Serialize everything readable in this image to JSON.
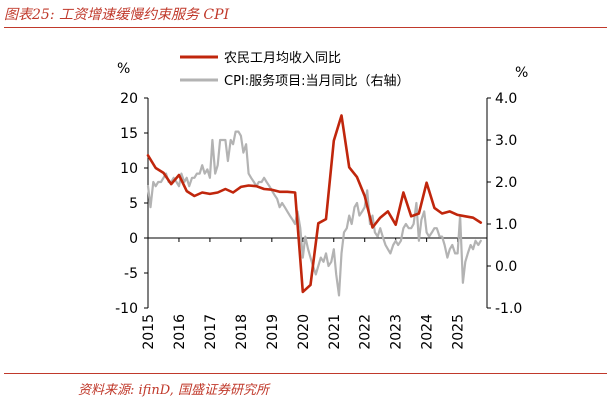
{
  "title": "图表25:  工资增速缓慢约束服务 CPI",
  "source": "资料来源:  ifinD,  国盛证券研究所",
  "colors": {
    "series_income": "#c0260c",
    "series_cpi": "#b3b3b3",
    "accent": "#c0392b"
  },
  "chart_data": {
    "type": "line",
    "title": "图表25:  工资增速缓慢约束服务 CPI",
    "y_left": {
      "unit": "%",
      "range": [
        -10,
        20
      ],
      "ticks": [
        -10,
        -5,
        0,
        5,
        10,
        15,
        20
      ]
    },
    "y_right": {
      "unit": "%",
      "range": [
        -1.0,
        4.0
      ],
      "ticks": [
        "-1.0",
        "0.0",
        "1.0",
        "2.0",
        "3.0",
        "4.0"
      ],
      "tick_values": [
        -1,
        0,
        1,
        2,
        3,
        4
      ]
    },
    "x": {
      "range": [
        2015.0,
        2025.95
      ],
      "ticks": [
        "2015",
        "2016",
        "2017",
        "2018",
        "2019",
        "2020",
        "2021",
        "2022",
        "2023",
        "2024",
        "2025"
      ],
      "tick_values": [
        2015,
        2016,
        2017,
        2018,
        2019,
        2020,
        2021,
        2022,
        2023,
        2024,
        2025
      ]
    },
    "legend": {
      "placement": "top-center"
    },
    "series": [
      {
        "name": "农民工月均收入同比",
        "axis": "left",
        "color": "#c0260c",
        "points": [
          [
            2015.0,
            11.8
          ],
          [
            2015.25,
            10.0
          ],
          [
            2015.5,
            9.3
          ],
          [
            2015.75,
            7.7
          ],
          [
            2016.0,
            9.0
          ],
          [
            2016.25,
            6.7
          ],
          [
            2016.5,
            6.0
          ],
          [
            2016.75,
            6.5
          ],
          [
            2017.0,
            6.3
          ],
          [
            2017.25,
            6.5
          ],
          [
            2017.5,
            7.0
          ],
          [
            2017.75,
            6.5
          ],
          [
            2018.0,
            7.3
          ],
          [
            2018.25,
            7.5
          ],
          [
            2018.5,
            7.4
          ],
          [
            2018.75,
            7.0
          ],
          [
            2019.0,
            6.9
          ],
          [
            2019.25,
            6.6
          ],
          [
            2019.5,
            6.6
          ],
          [
            2019.75,
            6.5
          ],
          [
            2020.0,
            -7.7
          ],
          [
            2020.25,
            -6.7
          ],
          [
            2020.5,
            2.1
          ],
          [
            2020.75,
            2.7
          ],
          [
            2021.0,
            13.9
          ],
          [
            2021.25,
            17.5
          ],
          [
            2021.5,
            10.1
          ],
          [
            2021.75,
            8.7
          ],
          [
            2022.0,
            6.0
          ],
          [
            2022.25,
            1.5
          ],
          [
            2022.5,
            2.9
          ],
          [
            2022.75,
            3.8
          ],
          [
            2023.0,
            1.9
          ],
          [
            2023.25,
            6.5
          ],
          [
            2023.5,
            3.1
          ],
          [
            2023.75,
            3.5
          ],
          [
            2024.0,
            7.9
          ],
          [
            2024.25,
            4.3
          ],
          [
            2024.5,
            3.5
          ],
          [
            2024.75,
            3.8
          ],
          [
            2025.0,
            3.3
          ],
          [
            2025.25,
            3.1
          ],
          [
            2025.5,
            2.9
          ],
          [
            2025.75,
            2.2
          ]
        ]
      },
      {
        "name": "CPI:服务项目:当月同比（右轴）",
        "axis": "right",
        "color": "#b3b3b3",
        "points": [
          [
            2015.0,
            1.9
          ],
          [
            2015.08,
            1.4
          ],
          [
            2015.17,
            2.0
          ],
          [
            2015.25,
            1.9
          ],
          [
            2015.33,
            2.0
          ],
          [
            2015.42,
            2.0
          ],
          [
            2015.5,
            2.1
          ],
          [
            2015.58,
            2.2
          ],
          [
            2015.67,
            2.0
          ],
          [
            2015.75,
            2.0
          ],
          [
            2015.83,
            2.1
          ],
          [
            2015.92,
            2.0
          ],
          [
            2016.0,
            1.9
          ],
          [
            2016.08,
            2.2
          ],
          [
            2016.17,
            2.0
          ],
          [
            2016.25,
            2.1
          ],
          [
            2016.33,
            1.9
          ],
          [
            2016.42,
            2.1
          ],
          [
            2016.5,
            2.1
          ],
          [
            2016.58,
            2.2
          ],
          [
            2016.67,
            2.2
          ],
          [
            2016.75,
            2.4
          ],
          [
            2016.83,
            2.2
          ],
          [
            2016.92,
            2.3
          ],
          [
            2017.0,
            2.1
          ],
          [
            2017.08,
            3.0
          ],
          [
            2017.17,
            2.2
          ],
          [
            2017.25,
            2.4
          ],
          [
            2017.33,
            3.0
          ],
          [
            2017.42,
            3.0
          ],
          [
            2017.5,
            3.0
          ],
          [
            2017.58,
            2.5
          ],
          [
            2017.67,
            3.0
          ],
          [
            2017.75,
            2.9
          ],
          [
            2017.83,
            3.2
          ],
          [
            2017.92,
            3.2
          ],
          [
            2018.0,
            3.1
          ],
          [
            2018.08,
            2.7
          ],
          [
            2018.17,
            2.9
          ],
          [
            2018.25,
            2.2
          ],
          [
            2018.33,
            2.1
          ],
          [
            2018.42,
            2.0
          ],
          [
            2018.5,
            1.9
          ],
          [
            2018.58,
            2.0
          ],
          [
            2018.67,
            2.0
          ],
          [
            2018.75,
            2.1
          ],
          [
            2018.83,
            2.0
          ],
          [
            2018.92,
            1.9
          ],
          [
            2019.0,
            1.8
          ],
          [
            2019.08,
            1.7
          ],
          [
            2019.17,
            1.6
          ],
          [
            2019.25,
            1.4
          ],
          [
            2019.33,
            1.5
          ],
          [
            2019.42,
            1.4
          ],
          [
            2019.5,
            1.3
          ],
          [
            2019.58,
            1.2
          ],
          [
            2019.67,
            1.1
          ],
          [
            2019.75,
            1.0
          ],
          [
            2019.83,
            1.3
          ],
          [
            2019.92,
            0.9
          ],
          [
            2020.0,
            0.2
          ],
          [
            2020.08,
            0.7
          ],
          [
            2020.17,
            0.4
          ],
          [
            2020.25,
            0.2
          ],
          [
            2020.33,
            0.0
          ],
          [
            2020.42,
            -0.2
          ],
          [
            2020.5,
            0.0
          ],
          [
            2020.58,
            0.2
          ],
          [
            2020.67,
            0.1
          ],
          [
            2020.75,
            0.3
          ],
          [
            2020.83,
            0.0
          ],
          [
            2020.92,
            0.1
          ],
          [
            2021.0,
            0.4
          ],
          [
            2021.08,
            -0.2
          ],
          [
            2021.17,
            -0.7
          ],
          [
            2021.25,
            0.3
          ],
          [
            2021.33,
            0.8
          ],
          [
            2021.42,
            0.9
          ],
          [
            2021.5,
            1.2
          ],
          [
            2021.58,
            1.0
          ],
          [
            2021.67,
            1.4
          ],
          [
            2021.75,
            1.5
          ],
          [
            2021.83,
            1.2
          ],
          [
            2021.92,
            1.3
          ],
          [
            2022.0,
            1.4
          ],
          [
            2022.08,
            1.8
          ],
          [
            2022.17,
            1.0
          ],
          [
            2022.25,
            1.2
          ],
          [
            2022.33,
            0.8
          ],
          [
            2022.42,
            0.7
          ],
          [
            2022.5,
            0.9
          ],
          [
            2022.58,
            0.7
          ],
          [
            2022.67,
            0.5
          ],
          [
            2022.75,
            0.4
          ],
          [
            2022.83,
            0.3
          ],
          [
            2022.92,
            0.5
          ],
          [
            2023.0,
            0.6
          ],
          [
            2023.08,
            0.5
          ],
          [
            2023.17,
            0.6
          ],
          [
            2023.25,
            0.9
          ],
          [
            2023.33,
            1.0
          ],
          [
            2023.42,
            0.9
          ],
          [
            2023.5,
            0.9
          ],
          [
            2023.58,
            1.0
          ],
          [
            2023.67,
            1.5
          ],
          [
            2023.75,
            0.6
          ],
          [
            2023.83,
            1.1
          ],
          [
            2023.92,
            1.3
          ],
          [
            2024.0,
            0.8
          ],
          [
            2024.08,
            0.7
          ],
          [
            2024.17,
            0.8
          ],
          [
            2024.25,
            0.9
          ],
          [
            2024.33,
            0.9
          ],
          [
            2024.42,
            0.7
          ],
          [
            2024.5,
            0.7
          ],
          [
            2024.58,
            0.5
          ],
          [
            2024.67,
            0.2
          ],
          [
            2024.75,
            0.4
          ],
          [
            2024.83,
            0.5
          ],
          [
            2024.92,
            0.3
          ],
          [
            2025.0,
            0.3
          ],
          [
            2025.08,
            1.2
          ],
          [
            2025.17,
            -0.4
          ],
          [
            2025.25,
            0.1
          ],
          [
            2025.33,
            0.3
          ],
          [
            2025.42,
            0.5
          ],
          [
            2025.5,
            0.4
          ],
          [
            2025.58,
            0.6
          ],
          [
            2025.67,
            0.5
          ],
          [
            2025.75,
            0.6
          ]
        ]
      }
    ]
  }
}
